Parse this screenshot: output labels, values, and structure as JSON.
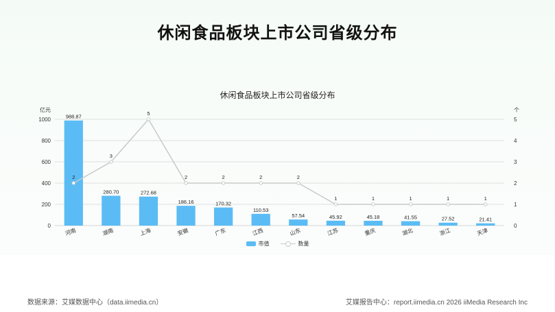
{
  "header": {
    "title": "休闲食品板块上市公司省级分布"
  },
  "footer": {
    "source": "数据来源：艾媒数据中心（data.iimedia.cn）",
    "credit": "艾媒报告中心：report.iimedia.cn  2026 iiMedia Research Inc"
  },
  "colors": {
    "bar": "#5bbcf5",
    "line": "#c9c9c9",
    "grid": "#d6d6d6"
  },
  "chart_data": {
    "type": "bar",
    "title": "休闲食品板块上市公司省级分布",
    "categories": [
      "河南",
      "湖南",
      "上海",
      "安徽",
      "广东",
      "江西",
      "山东",
      "江苏",
      "重庆",
      "湖北",
      "浙江",
      "天津"
    ],
    "series": [
      {
        "name": "市值",
        "type": "bar",
        "axis": "left",
        "values": [
          988.87,
          280.7,
          272.68,
          186.16,
          170.32,
          110.53,
          57.54,
          45.92,
          45.18,
          41.55,
          27.52,
          21.41
        ],
        "labels": [
          "988.87",
          "280.70",
          "272.68",
          "186.16",
          "170.32",
          "110.53",
          "57.54",
          "45.92",
          "45.18",
          "41.55",
          "27.52",
          "21.41"
        ]
      },
      {
        "name": "数量",
        "type": "line",
        "axis": "right",
        "values": [
          2,
          3,
          5,
          2,
          2,
          2,
          2,
          1,
          1,
          1,
          1,
          1
        ],
        "labels": [
          "2",
          "3",
          "5",
          "2",
          "2",
          "2",
          "2",
          "1",
          "1",
          "1",
          "1",
          "1"
        ]
      }
    ],
    "y_left": {
      "unit": "亿元",
      "ylim": [
        0,
        1000
      ],
      "ticks": [
        "0",
        "200",
        "400",
        "600",
        "800",
        "1000"
      ]
    },
    "y_right": {
      "unit": "个",
      "ylim": [
        0,
        5
      ],
      "ticks": [
        "0",
        "1",
        "2",
        "3",
        "4",
        "5"
      ]
    },
    "grid": true,
    "legend": "bottom-center"
  }
}
